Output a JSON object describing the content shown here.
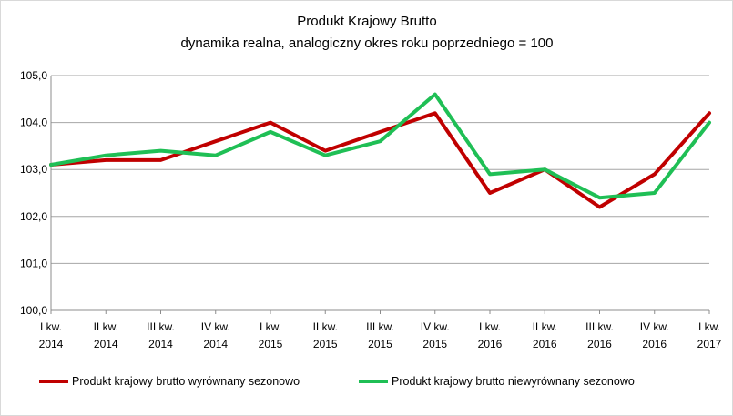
{
  "chart_data": {
    "type": "line",
    "title": "Produkt Krajowy Brutto",
    "subtitle": "dynamika realna, analogiczny okres roku poprzedniego = 100",
    "xlabel": "",
    "ylabel": "",
    "categories": [
      [
        "I kw.",
        "2014"
      ],
      [
        "II kw.",
        "2014"
      ],
      [
        "III kw.",
        "2014"
      ],
      [
        "IV kw.",
        "2014"
      ],
      [
        "I kw.",
        "2015"
      ],
      [
        "II kw.",
        "2015"
      ],
      [
        "III kw.",
        "2015"
      ],
      [
        "IV kw.",
        "2015"
      ],
      [
        "I kw.",
        "2016"
      ],
      [
        "II kw.",
        "2016"
      ],
      [
        "III kw.",
        "2016"
      ],
      [
        "IV kw.",
        "2016"
      ],
      [
        "I kw.",
        "2017"
      ]
    ],
    "y_ticks": [
      "100,0",
      "101,0",
      "102,0",
      "103,0",
      "104,0",
      "105,0"
    ],
    "ylim": [
      100,
      105
    ],
    "grid": true,
    "legend_position": "bottom",
    "series": [
      {
        "name": "Produkt krajowy brutto wyrównany sezonowo",
        "color": "#c00000",
        "values": [
          103.1,
          103.2,
          103.2,
          103.6,
          104.0,
          103.4,
          103.8,
          104.2,
          102.5,
          103.0,
          102.2,
          102.9,
          104.2
        ]
      },
      {
        "name": "Produkt krajowy brutto niewyrównany sezonowo",
        "color": "#1fbf55",
        "values": [
          103.1,
          103.3,
          103.4,
          103.3,
          103.8,
          103.3,
          103.6,
          104.6,
          102.9,
          103.0,
          102.4,
          102.5,
          104.0
        ]
      }
    ]
  }
}
